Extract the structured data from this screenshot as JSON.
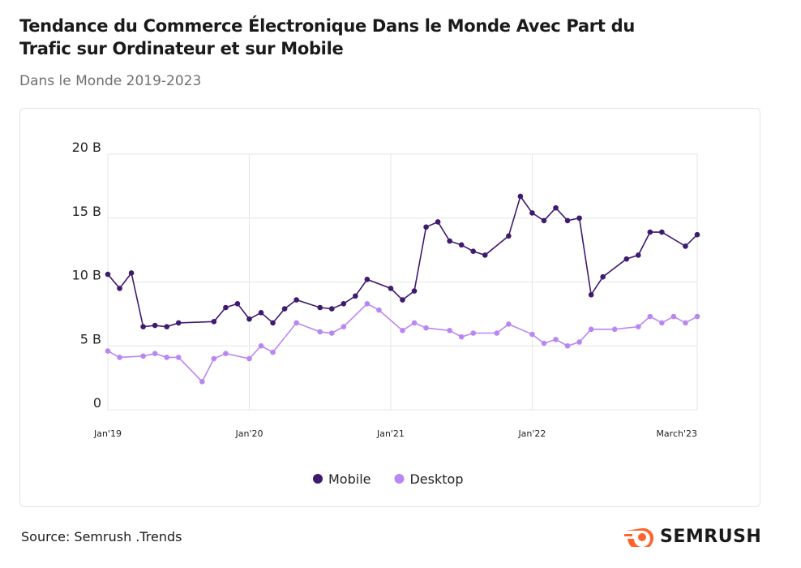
{
  "chart_data": {
    "type": "line",
    "title": "Tendance du Commerce Électronique Dans le Monde Avec Part du Trafic sur Ordinateur et sur Mobile",
    "subtitle": "Dans le Monde 2019-2023",
    "source": "Source: Semrush .Trends",
    "brand": "SEMRUSH",
    "xlim": [
      "2019-01",
      "2023-03"
    ],
    "xticks": [
      {
        "value": "2019-01",
        "label": "Jan'19"
      },
      {
        "value": "2020-01",
        "label": "Jan'20"
      },
      {
        "value": "2021-01",
        "label": "Jan'21"
      },
      {
        "value": "2022-01",
        "label": "Jan'22"
      },
      {
        "value": "2023-03",
        "label": "March'23"
      }
    ],
    "ylim": [
      0,
      20000000000
    ],
    "yticks": [
      0,
      {
        "value": 5000000000,
        "label": "5 B"
      },
      {
        "value": 10000000000,
        "label": "10 B"
      },
      {
        "value": 15000000000,
        "label": "15 B"
      },
      {
        "value": 20000000000,
        "label": "20 B"
      }
    ],
    "grid": true,
    "series": [
      {
        "name": "Mobile",
        "color": "#3f1a6e",
        "x": [
          "2019-01",
          "2019-02",
          "2019-03",
          "2019-04",
          "2019-05",
          "2019-06",
          "2019-07",
          "2019-10",
          "2019-11",
          "2019-12",
          "2020-01",
          "2020-02",
          "2020-03",
          "2020-04",
          "2020-05",
          "2020-07",
          "2020-08",
          "2020-09",
          "2020-10",
          "2020-11",
          "2021-01",
          "2021-02",
          "2021-03",
          "2021-04",
          "2021-05",
          "2021-06",
          "2021-07",
          "2021-08",
          "2021-09",
          "2021-11",
          "2021-12",
          "2022-01",
          "2022-02",
          "2022-03",
          "2022-04",
          "2022-05",
          "2022-06",
          "2022-07",
          "2022-09",
          "2022-10",
          "2022-11",
          "2022-12",
          "2023-02",
          "2023-03"
        ],
        "values": [
          10600000000,
          9500000000,
          10700000000,
          6500000000,
          6600000000,
          6500000000,
          6800000000,
          6900000000,
          8000000000,
          8300000000,
          7100000000,
          7600000000,
          6800000000,
          7900000000,
          8600000000,
          8000000000,
          7900000000,
          8300000000,
          8900000000,
          10200000000,
          9500000000,
          8600000000,
          9300000000,
          14300000000,
          14700000000,
          13200000000,
          12900000000,
          12400000000,
          12100000000,
          13600000000,
          16700000000,
          15400000000,
          14800000000,
          15800000000,
          14800000000,
          15000000000,
          9000000000,
          10400000000,
          11800000000,
          12100000000,
          13900000000,
          13900000000,
          12800000000,
          13700000000
        ]
      },
      {
        "name": "Desktop",
        "color": "#b987f2",
        "x": [
          "2019-01",
          "2019-02",
          "2019-04",
          "2019-05",
          "2019-06",
          "2019-07",
          "2019-09",
          "2019-10",
          "2019-11",
          "2020-01",
          "2020-02",
          "2020-03",
          "2020-05",
          "2020-07",
          "2020-08",
          "2020-09",
          "2020-11",
          "2020-12",
          "2021-02",
          "2021-03",
          "2021-04",
          "2021-06",
          "2021-07",
          "2021-08",
          "2021-10",
          "2021-11",
          "2022-01",
          "2022-02",
          "2022-03",
          "2022-04",
          "2022-05",
          "2022-06",
          "2022-08",
          "2022-10",
          "2022-11",
          "2022-12",
          "2023-01",
          "2023-02",
          "2023-03"
        ],
        "values": [
          4600000000,
          4100000000,
          4200000000,
          4400000000,
          4100000000,
          4100000000,
          2200000000,
          4000000000,
          4400000000,
          4000000000,
          5000000000,
          4500000000,
          6800000000,
          6100000000,
          6000000000,
          6500000000,
          8300000000,
          7800000000,
          6200000000,
          6800000000,
          6400000000,
          6200000000,
          5700000000,
          6000000000,
          6000000000,
          6700000000,
          5900000000,
          5200000000,
          5500000000,
          5000000000,
          5300000000,
          6300000000,
          6300000000,
          6500000000,
          7300000000,
          6800000000,
          7300000000,
          6800000000,
          7300000000
        ]
      }
    ]
  }
}
